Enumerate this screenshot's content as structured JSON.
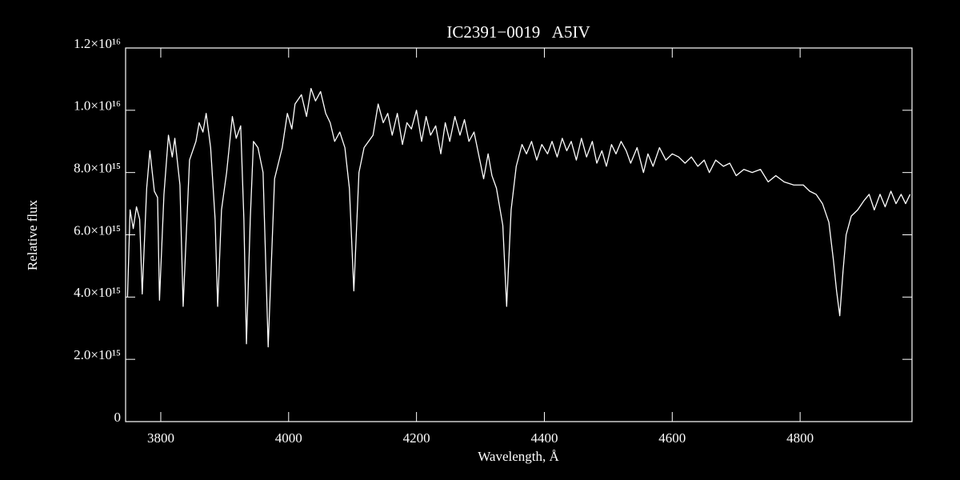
{
  "chart_data": {
    "type": "line",
    "title": "IC2391−0019   A5IV",
    "x_label": "Wavelength, Å",
    "y_label": "Relative flux",
    "color": "#ffffff",
    "xlim": [
      3745,
      4975
    ],
    "ylim": [
      0,
      1.2e+16
    ],
    "xticks": [
      3800,
      4000,
      4200,
      4400,
      4600,
      4800
    ],
    "yticks": [
      0,
      {
        "value": 2000000000000000.0,
        "label": "2.0×10¹⁵"
      },
      {
        "value": 4000000000000000.0,
        "label": "4.0×10¹⁵"
      },
      {
        "value": 6000000000000000.0,
        "label": "6.0×10¹⁵"
      },
      {
        "value": 8000000000000000.0,
        "label": "8.0×10¹⁵"
      },
      {
        "value": 1e+16,
        "label": "1.0×10¹⁶"
      },
      {
        "value": 1.2e+16,
        "label": "1.2×10¹⁶"
      }
    ],
    "x": [
      3748,
      3752,
      3757,
      3762,
      3767,
      3771,
      3778,
      3783,
      3790,
      3795,
      3798,
      3805,
      3812,
      3818,
      3822,
      3830,
      3835,
      3845,
      3855,
      3860,
      3866,
      3871,
      3878,
      3885,
      3889,
      3895,
      3903,
      3912,
      3918,
      3925,
      3930,
      3934,
      3940,
      3945,
      3952,
      3960,
      3968,
      3978,
      3990,
      3998,
      4005,
      4010,
      4020,
      4028,
      4035,
      4042,
      4050,
      4058,
      4065,
      4072,
      4080,
      4088,
      4095,
      4102,
      4110,
      4118,
      4125,
      4132,
      4140,
      4148,
      4155,
      4162,
      4170,
      4178,
      4185,
      4192,
      4200,
      4208,
      4215,
      4222,
      4230,
      4238,
      4245,
      4252,
      4260,
      4268,
      4275,
      4282,
      4290,
      4298,
      4305,
      4312,
      4318,
      4325,
      4335,
      4341,
      4348,
      4356,
      4365,
      4372,
      4380,
      4388,
      4396,
      4405,
      4412,
      4420,
      4428,
      4435,
      4442,
      4450,
      4458,
      4466,
      4475,
      4482,
      4490,
      4497,
      4505,
      4512,
      4520,
      4528,
      4535,
      4545,
      4555,
      4562,
      4570,
      4580,
      4590,
      4600,
      4610,
      4620,
      4630,
      4640,
      4650,
      4658,
      4668,
      4680,
      4690,
      4700,
      4712,
      4725,
      4738,
      4750,
      4762,
      4775,
      4790,
      4805,
      4815,
      4825,
      4835,
      4845,
      4852,
      4857,
      4862,
      4867,
      4872,
      4880,
      4890,
      4900,
      4908,
      4916,
      4925,
      4933,
      4942,
      4950,
      4958,
      4965,
      4972
    ],
    "values": [
      4000000000000000.0,
      6800000000000000.0,
      6200000000000000.0,
      6900000000000000.0,
      6500000000000000.0,
      4100000000000000.0,
      7500000000000000.0,
      8700000000000000.0,
      7400000000000000.0,
      7200000000000000.0,
      3900000000000000.0,
      7300000000000000.0,
      9200000000000000.0,
      8500000000000000.0,
      9100000000000000.0,
      7600000000000000.0,
      3700000000000000.0,
      8400000000000000.0,
      9000000000000000.0,
      9600000000000000.0,
      9300000000000000.0,
      9900000000000000.0,
      8800000000000000.0,
      6500000000000000.0,
      3700000000000000.0,
      6800000000000000.0,
      8000000000000000.0,
      9800000000000000.0,
      9100000000000000.0,
      9500000000000000.0,
      6500000000000000.0,
      2500000000000000.0,
      6500000000000000.0,
      9000000000000000.0,
      8800000000000000.0,
      8000000000000000.0,
      2400000000000000.0,
      7800000000000000.0,
      8800000000000000.0,
      9900000000000000.0,
      9400000000000000.0,
      1.02e+16,
      1.05e+16,
      9800000000000000.0,
      1.07e+16,
      1.03e+16,
      1.06e+16,
      9900000000000000.0,
      9600000000000000.0,
      9000000000000000.0,
      9300000000000000.0,
      8800000000000000.0,
      7500000000000000.0,
      4200000000000000.0,
      8000000000000000.0,
      8800000000000000.0,
      9000000000000000.0,
      9200000000000000.0,
      1.02e+16,
      9600000000000000.0,
      9900000000000000.0,
      9200000000000000.0,
      9900000000000000.0,
      8900000000000000.0,
      9600000000000000.0,
      9400000000000000.0,
      1e+16,
      9000000000000000.0,
      9800000000000000.0,
      9200000000000000.0,
      9500000000000000.0,
      8600000000000000.0,
      9600000000000000.0,
      9000000000000000.0,
      9800000000000000.0,
      9200000000000000.0,
      9700000000000000.0,
      9000000000000000.0,
      9300000000000000.0,
      8500000000000000.0,
      7800000000000000.0,
      8600000000000000.0,
      7900000000000000.0,
      7500000000000000.0,
      6300000000000000.0,
      3700000000000000.0,
      6800000000000000.0,
      8200000000000000.0,
      8900000000000000.0,
      8600000000000000.0,
      9000000000000000.0,
      8400000000000000.0,
      8900000000000000.0,
      8600000000000000.0,
      9000000000000000.0,
      8500000000000000.0,
      9100000000000000.0,
      8700000000000000.0,
      9000000000000000.0,
      8400000000000000.0,
      9100000000000000.0,
      8500000000000000.0,
      9000000000000000.0,
      8300000000000000.0,
      8700000000000000.0,
      8200000000000000.0,
      8900000000000000.0,
      8600000000000000.0,
      9000000000000000.0,
      8700000000000000.0,
      8300000000000000.0,
      8800000000000000.0,
      8000000000000000.0,
      8600000000000000.0,
      8200000000000000.0,
      8800000000000000.0,
      8400000000000000.0,
      8600000000000000.0,
      8500000000000000.0,
      8300000000000000.0,
      8500000000000000.0,
      8200000000000000.0,
      8400000000000000.0,
      8000000000000000.0,
      8400000000000000.0,
      8200000000000000.0,
      8300000000000000.0,
      7900000000000000.0,
      8100000000000000.0,
      8000000000000000.0,
      8100000000000000.0,
      7700000000000000.0,
      7900000000000000.0,
      7700000000000000.0,
      7600000000000000.0,
      7600000000000000.0,
      7400000000000000.0,
      7300000000000000.0,
      7000000000000000.0,
      6400000000000000.0,
      5200000000000000.0,
      4200000000000000.0,
      3400000000000000.0,
      4800000000000000.0,
      6000000000000000.0,
      6600000000000000.0,
      6800000000000000.0,
      7100000000000000.0,
      7300000000000000.0,
      6800000000000000.0,
      7300000000000000.0,
      6900000000000000.0,
      7400000000000000.0,
      7000000000000000.0,
      7300000000000000.0,
      7000000000000000.0,
      7300000000000000.0
    ]
  }
}
